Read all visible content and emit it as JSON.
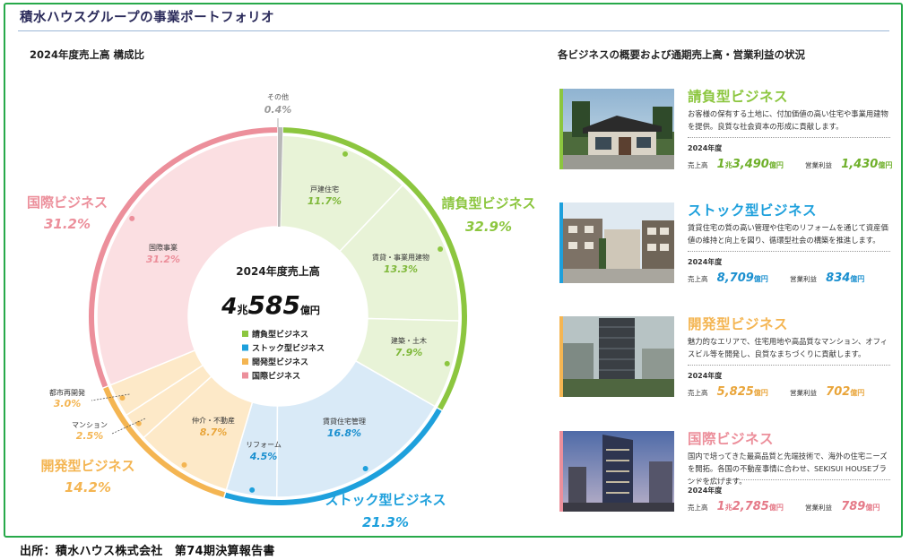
{
  "page": {
    "title": "積水ハウスグループの事業ポートフォリオ",
    "source": "出所：積水ハウス株式会社　第74期決算報告書"
  },
  "colors": {
    "contract": "#8cc63f",
    "stock": "#1ea0dc",
    "development": "#f4b552",
    "international": "#ec8f9b",
    "other": "#b8b8b8",
    "frame": "#27a94a"
  },
  "chart_data": {
    "type": "pie",
    "title": "2024年度売上高 構成比",
    "center": {
      "label": "2024年度売上高",
      "value_big1": "4",
      "unit1": "兆",
      "value_big2": "585",
      "unit2": "億円"
    },
    "legend": {
      "placement": "center",
      "entries": [
        "請負型ビジネス",
        "ストック型ビジネス",
        "開発型ビジネス",
        "国際ビジネス"
      ]
    },
    "other": {
      "label": "その他",
      "value": 0.4,
      "display": "0.4%"
    },
    "segments": [
      {
        "name": "請負型ビジネス",
        "value": 32.9,
        "display": "32.9%",
        "color_key": "contract",
        "sub": [
          {
            "label": "戸建住宅",
            "value": 11.7,
            "display": "11.7%"
          },
          {
            "label": "賃貸・事業用建物",
            "value": 13.3,
            "display": "13.3%"
          },
          {
            "label": "建築・土木",
            "value": 7.9,
            "display": "7.9%"
          }
        ]
      },
      {
        "name": "ストック型ビジネス",
        "value": 21.3,
        "display": "21.3%",
        "color_key": "stock",
        "sub": [
          {
            "label": "賃貸住宅管理",
            "value": 16.8,
            "display": "16.8%"
          },
          {
            "label": "リフォーム",
            "value": 4.5,
            "display": "4.5%"
          }
        ]
      },
      {
        "name": "開発型ビジネス",
        "value": 14.2,
        "display": "14.2%",
        "color_key": "development",
        "sub": [
          {
            "label": "仲介・不動産",
            "value": 8.7,
            "display": "8.7%"
          },
          {
            "label": "マンション",
            "value": 2.5,
            "display": "2.5%"
          },
          {
            "label": "都市再開発",
            "value": 3.0,
            "display": "3.0%"
          }
        ]
      },
      {
        "name": "国際ビジネス",
        "value": 31.2,
        "display": "31.2%",
        "color_key": "international",
        "sub": [
          {
            "label": "国際事業",
            "value": 31.2,
            "display": "31.2%"
          }
        ]
      }
    ]
  },
  "overview": {
    "title": "各ビジネスの概要および通期売上高・営業利益の状況",
    "year_label": "2024年度",
    "sales_label": "売上高",
    "profit_label": "営業利益",
    "unit_oku": "億円",
    "unit_cho": "兆",
    "businesses": [
      {
        "name": "請負型ビジネス",
        "color_key": "contract",
        "desc": "お客様の保有する土地に、付加価値の高い住宅や事業用建物を提供。良質な社会資本の形成に貢献します。",
        "sales_cho": "1",
        "sales": "3,490",
        "profit": "1,430"
      },
      {
        "name": "ストック型ビジネス",
        "color_key": "stock",
        "desc": "賃貸住宅の質の高い管理や住宅のリフォームを通じて資産価値の維持と向上を図り、循環型社会の構築を推進します。",
        "sales_cho": "",
        "sales": "8,709",
        "profit": "834"
      },
      {
        "name": "開発型ビジネス",
        "color_key": "development",
        "desc": "魅力的なエリアで、住宅用地や高品質なマンション、オフィスビル等を開発し、良質なまちづくりに貢献します。",
        "sales_cho": "",
        "sales": "5,825",
        "profit": "702"
      },
      {
        "name": "国際ビジネス",
        "color_key": "international",
        "desc": "国内で培ってきた最高品質と先端技術で、海外の住宅ニーズを開拓。各国の不動産事情に合わせ、SEKISUI HOUSEブランドを広げます。",
        "sales_cho": "1",
        "sales": "2,785",
        "profit": "789"
      }
    ]
  }
}
